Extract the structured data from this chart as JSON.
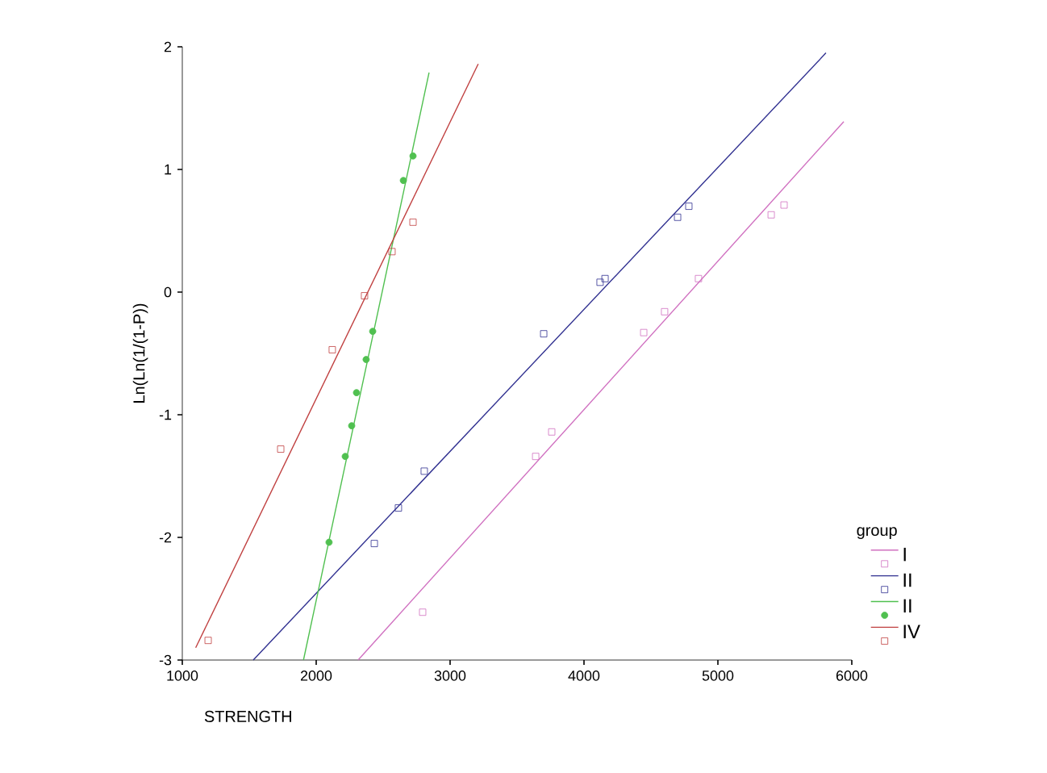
{
  "chart_data": {
    "type": "scatter",
    "xlabel": "STRENGTH",
    "ylabel": "Ln(Ln(1/(1-P))",
    "legend_title": "group",
    "legend": "right",
    "grid": false,
    "xlim": [
      1000,
      6000
    ],
    "ylim": [
      -3,
      2
    ],
    "xticks": [
      1000,
      2000,
      3000,
      4000,
      5000,
      6000
    ],
    "yticks": [
      -3,
      -2,
      -1,
      0,
      1,
      2
    ],
    "series": [
      {
        "name": "I",
        "color": "#d070c0",
        "marker": "square",
        "x": [
          2795,
          3639,
          3759,
          4446,
          4602,
          4855,
          5398,
          5494
        ],
        "values": [
          -2.61,
          -1.34,
          -1.14,
          -0.33,
          -0.16,
          0.11,
          0.63,
          0.71
        ]
      },
      {
        "type": "line",
        "color": "#d070c0",
        "x": [
          2313,
          5940
        ],
        "values": [
          -3,
          1.39
        ]
      },
      {
        "name": "II",
        "color": "#303090",
        "marker": "square",
        "x": [
          2434,
          2614,
          2807,
          3699,
          4120,
          4157,
          4699,
          4783
        ],
        "values": [
          -2.05,
          -1.76,
          -1.46,
          -0.34,
          0.08,
          0.11,
          0.61,
          0.7
        ]
      },
      {
        "type": "line",
        "color": "#303090",
        "x": [
          1530,
          5807
        ],
        "values": [
          -3,
          1.95
        ]
      },
      {
        "name": "II",
        "color": "#50c050",
        "marker": "circle",
        "x": [
          2096,
          2217,
          2265,
          2301,
          2373,
          2422,
          2651,
          2723
        ],
        "values": [
          -2.04,
          -1.34,
          -1.09,
          -0.82,
          -0.55,
          -0.32,
          0.91,
          1.11
        ]
      },
      {
        "type": "line",
        "color": "#50c050",
        "x": [
          1905,
          2843
        ],
        "values": [
          -3,
          1.79
        ]
      },
      {
        "name": "IV",
        "color": "#c04040",
        "marker": "square",
        "x": [
          1193,
          1735,
          2120,
          2361,
          2566,
          2723
        ],
        "values": [
          -2.84,
          -1.28,
          -0.47,
          -0.03,
          0.33,
          0.57
        ]
      },
      {
        "type": "line",
        "color": "#c04040",
        "x": [
          1100,
          3210
        ],
        "values": [
          -2.9,
          1.86
        ]
      }
    ]
  }
}
